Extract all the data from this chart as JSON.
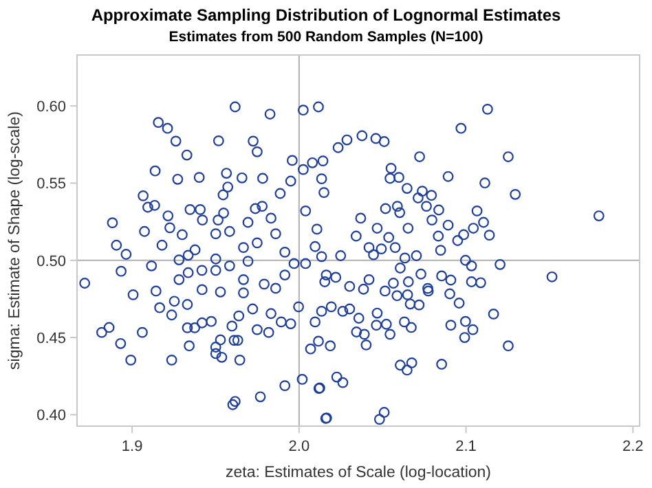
{
  "chart_data": {
    "type": "scatter",
    "title": "Approximate Sampling Distribution of Lognormal Estimates",
    "subtitle": "Estimates from 500 Random Samples (N=100)",
    "xlabel": "zeta: Estimates of Scale (log-location)",
    "ylabel": "sigma: Estimate of Shape (log-scale)",
    "xlim": [
      1.867,
      2.204
    ],
    "ylim": [
      0.3926,
      0.633
    ],
    "xticks": [
      1.9,
      {
        "value": 2,
        "label": "2.0"
      },
      2.1,
      2.2
    ],
    "yticks": [
      {
        "value": 0.4,
        "label": "0.40"
      },
      0.45,
      {
        "value": 0.5,
        "label": "0.50"
      },
      0.55,
      {
        "value": 0.6,
        "label": "0.60"
      }
    ],
    "grid": false,
    "marker": "circle",
    "ref_lines": [
      {
        "axis": "x",
        "value": 2,
        "color": "#b0b0b0"
      },
      {
        "axis": "y",
        "value": 0.5,
        "color": "#b0b0b0"
      }
    ],
    "series": [
      {
        "color": "#1f3f99",
        "x": [
          1.8716,
          1.9617,
          1.9826,
          1.9157,
          1.9212,
          1.9262,
          1.9328,
          1.9518,
          1.9725,
          1.9749,
          1.9138,
          1.9273,
          1.9402,
          1.9565,
          1.9658,
          1.9782,
          1.8882,
          1.9066,
          1.9094,
          1.9135,
          1.9215,
          1.9226,
          1.9074,
          1.93,
          1.9347,
          1.9408,
          1.9421,
          1.9179,
          1.8906,
          1.8964,
          1.9116,
          1.8934,
          1.9545,
          1.9573,
          1.9515,
          1.9501,
          1.9584,
          1.9548,
          1.9694,
          1.9738,
          1.9779,
          1.9832,
          1.9887,
          1.9959,
          1.995,
          1.986,
          1.9749,
          1.9667,
          1.9501,
          1.9336,
          1.9281,
          1.9377,
          1.9584,
          1.9694,
          1.9915,
          1.997,
          1.9281,
          1.9336,
          1.9418,
          1.9501,
          1.9667,
          1.9791,
          1.9915,
          2.0025,
          2.0116,
          2.0025,
          2.008,
          2.0135,
          2.0039,
          2.0107,
          2.0149,
          2.0096,
          2.0039,
          2.0135,
          2.0163,
          1.9143,
          1.9006,
          2.1129,
          2.097,
          2.0722,
          2.1253,
          2.0893,
          2.1113,
          2.1295,
          2.1796,
          2.0377,
          2.046,
          2.051,
          2.0287,
          2.0234,
          2.0143,
          2.0551,
          2.0545,
          2.0598,
          2.0647,
          2.0738,
          2.0793,
          2.0713,
          2.0763,
          2.0837,
          2.0518,
          2.0589,
          2.0603,
          2.0369,
          2.0796,
          2.0893,
          2.1066,
          2.1105,
          2.1044,
          2.114,
          2.0986,
          2.095,
          2.0834,
          2.0653,
          2.0468,
          2.0537,
          2.0342,
          2.0419,
          2.0493,
          2.0576,
          2.0446,
          2.0249,
          2.0703,
          2.0634,
          2.0848,
          2.0997,
          2.1033,
          2.1204,
          2.1515,
          2.0606,
          2.073,
          2.0854,
          2.0909,
          2.1033,
          2.1088,
          2.0565,
          2.0655,
          2.0419,
          2.0303,
          2.022,
          2.0154,
          2.0774,
          2.0515,
          1.8818,
          1.8862,
          1.8931,
          1.9061,
          1.8992,
          1.9237,
          1.9342,
          1.9331,
          1.9375,
          1.9165,
          1.9253,
          1.9237,
          1.9331,
          1.9419,
          1.9474,
          1.9501,
          1.9501,
          1.9537,
          1.9529,
          1.9611,
          1.9633,
          1.9645,
          1.9603,
          1.9617,
          1.9768,
          1.9818,
          1.9749,
          1.9598,
          1.9915,
          2.0019,
          2.0069,
          2.0119,
          2.016,
          2.0116,
          1.9893,
          1.995,
          2.0096,
          1.9419,
          1.9529,
          1.9667,
          1.986,
          1.9997,
          1.9639,
          1.9722,
          1.9832,
          2.0135,
          2.0187,
          2.0124,
          2.0226,
          2.0262,
          2.0165,
          2.0482,
          2.051,
          2.0606,
          2.0647,
          2.0675,
          2.0854,
          2.1253,
          2.1165,
          2.0997,
          2.1041,
          2.0992,
          2.0909,
          2.0959,
          2.0903,
          2.0719,
          2.0666,
          2.0631,
          2.0672,
          2.0545,
          2.0523,
          2.0463,
          2.0402,
          2.0391,
          2.0344,
          2.0358,
          2.0468,
          2.0587,
          2.065,
          2.0771,
          2.0262,
          2.0303,
          2.0193,
          2.0386
        ],
        "values": [
          0.4852,
          0.5994,
          0.5947,
          0.5893,
          0.5855,
          0.5772,
          0.5682,
          0.5774,
          0.5772,
          0.5703,
          0.5579,
          0.5525,
          0.5537,
          0.5564,
          0.5534,
          0.5531,
          0.5243,
          0.5418,
          0.5344,
          0.5356,
          0.5288,
          0.5211,
          0.5187,
          0.5166,
          0.5329,
          0.5329,
          0.5261,
          0.5098,
          0.5098,
          0.5039,
          0.4964,
          0.4929,
          0.5424,
          0.5475,
          0.5261,
          0.5172,
          0.5187,
          0.5306,
          0.5246,
          0.5335,
          0.535,
          0.5273,
          0.5433,
          0.5647,
          0.5513,
          0.5172,
          0.5113,
          0.5083,
          0.5009,
          0.5033,
          0.5003,
          0.5068,
          0.4964,
          0.4994,
          0.5053,
          0.4979,
          0.4875,
          0.492,
          0.4935,
          0.4935,
          0.4875,
          0.4846,
          0.4905,
          0.5973,
          0.5994,
          0.5588,
          0.5632,
          0.5528,
          0.532,
          0.5202,
          0.5439,
          0.5089,
          0.4979,
          0.5024,
          0.4905,
          0.4801,
          0.4777,
          0.5979,
          0.5855,
          0.5671,
          0.5671,
          0.5543,
          0.5501,
          0.5427,
          0.5288,
          0.5807,
          0.5789,
          0.5769,
          0.578,
          0.573,
          0.5644,
          0.5596,
          0.5531,
          0.5537,
          0.5466,
          0.5448,
          0.5421,
          0.5404,
          0.535,
          0.5326,
          0.5335,
          0.535,
          0.5309,
          0.5273,
          0.5261,
          0.5228,
          0.532,
          0.5246,
          0.5208,
          0.5163,
          0.5166,
          0.5128,
          0.5157,
          0.5208,
          0.5208,
          0.5148,
          0.5157,
          0.5083,
          0.5074,
          0.5083,
          0.5036,
          0.503,
          0.503,
          0.5015,
          0.5065,
          0.5,
          0.4964,
          0.4973,
          0.4893,
          0.495,
          0.4911,
          0.4899,
          0.4872,
          0.4861,
          0.4855,
          0.4852,
          0.4861,
          0.4875,
          0.4831,
          0.489,
          0.4861,
          0.4801,
          0.4801,
          0.4533,
          0.4565,
          0.4461,
          0.4533,
          0.4354,
          0.4354,
          0.4446,
          0.4563,
          0.4563,
          0.4693,
          0.4735,
          0.4646,
          0.4714,
          0.4595,
          0.4604,
          0.4438,
          0.4396,
          0.4372,
          0.4485,
          0.4482,
          0.4482,
          0.4354,
          0.4065,
          0.4086,
          0.4116,
          0.4533,
          0.4551,
          0.4574,
          0.4188,
          0.4229,
          0.4426,
          0.417,
          0.3976,
          0.4476,
          0.4601,
          0.4589,
          0.4601,
          0.481,
          0.4795,
          0.4789,
          0.4819,
          0.4699,
          0.464,
          0.4685,
          0.4655,
          0.467,
          0.4446,
          0.4173,
          0.4244,
          0.4208,
          0.3979,
          0.397,
          0.4015,
          0.4321,
          0.4289,
          0.4336,
          0.4327,
          0.4446,
          0.4652,
          0.4604,
          0.4551,
          0.45,
          0.458,
          0.4723,
          0.4783,
          0.4711,
          0.4717,
          0.4601,
          0.4565,
          0.4521,
          0.4586,
          0.458,
          0.4452,
          0.4521,
          0.4536,
          0.4625,
          0.4658,
          0.4771,
          0.4777,
          0.4818,
          0.467,
          0.4685,
          0.4699,
          0.4813
        ]
      }
    ]
  }
}
